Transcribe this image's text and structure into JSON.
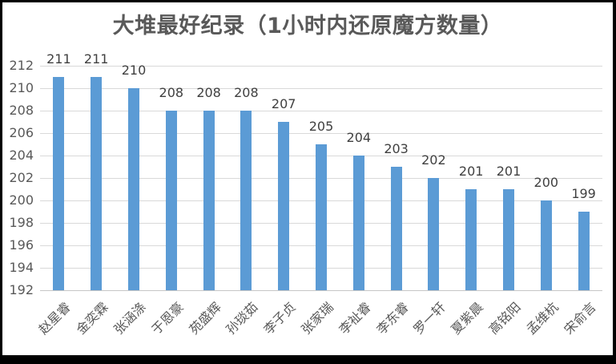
{
  "chart_data": {
    "type": "bar",
    "title": "大堆最好纪录（1小时内还原魔方数量）",
    "categories": [
      "赵星睿",
      "金奕霖",
      "张涵涤",
      "于恩豪",
      "苑盛辉",
      "孙琰茹",
      "李子贞",
      "张家瑞",
      "李祉睿",
      "李东睿",
      "罗一轩",
      "夏紫晨",
      "高铭阳",
      "孟维杭",
      "宋俞言"
    ],
    "values": [
      211,
      211,
      210,
      208,
      208,
      208,
      207,
      205,
      204,
      203,
      202,
      201,
      201,
      200,
      199
    ],
    "xlabel": "",
    "ylabel": "",
    "ylim": [
      192,
      212
    ],
    "yticks": [
      192,
      194,
      196,
      198,
      200,
      202,
      204,
      206,
      208,
      210,
      212
    ],
    "grid": true,
    "legend_position": "none",
    "data_labels": "outside-end",
    "category_label_rotation_deg": 45,
    "colors": {
      "bar": "#5B9BD5",
      "gridline": "#D9D9D9",
      "axis_line": "#C6C6C6",
      "title_text": "#595959",
      "data_label_text": "#404040",
      "tick_text": "#595959",
      "frame_border": "#000000",
      "background": "#FFFFFF"
    }
  }
}
